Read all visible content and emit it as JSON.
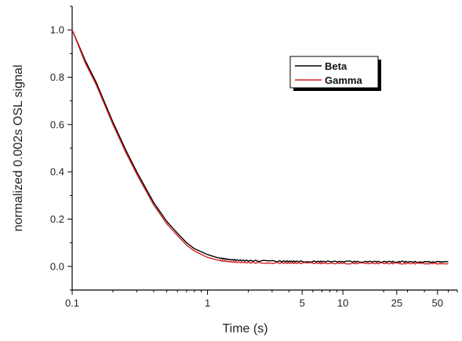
{
  "chart_data": {
    "type": "line",
    "xlabel": "Time (s)",
    "ylabel": "normalized 0.002s OSL signal",
    "xscale": "log",
    "xlim": [
      0.1,
      70
    ],
    "ylim": [
      -0.1,
      1.1
    ],
    "x_ticks": [
      {
        "value": 0.1,
        "label": "0.1"
      },
      {
        "value": 1,
        "label": "1"
      },
      {
        "value": 5,
        "label": "5"
      },
      {
        "value": 10,
        "label": "10"
      },
      {
        "value": 25,
        "label": "25"
      },
      {
        "value": 50,
        "label": "50"
      }
    ],
    "y_ticks": [
      {
        "value": 0.0,
        "label": "0.0"
      },
      {
        "value": 0.2,
        "label": "0.2"
      },
      {
        "value": 0.4,
        "label": "0.4"
      },
      {
        "value": 0.6,
        "label": "0.6"
      },
      {
        "value": 0.8,
        "label": "0.8"
      },
      {
        "value": 1.0,
        "label": "1.0"
      }
    ],
    "grid": false,
    "legend_position": "top-right",
    "series": [
      {
        "name": "Beta",
        "color": "#000000",
        "points": [
          [
            0.1,
            1.0
          ],
          [
            0.125,
            0.87
          ],
          [
            0.15,
            0.78
          ],
          [
            0.2,
            0.61
          ],
          [
            0.25,
            0.49
          ],
          [
            0.3,
            0.4
          ],
          [
            0.4,
            0.27
          ],
          [
            0.5,
            0.19
          ],
          [
            0.6,
            0.14
          ],
          [
            0.7,
            0.1
          ],
          [
            0.8,
            0.075
          ],
          [
            1.0,
            0.05
          ],
          [
            1.2,
            0.036
          ],
          [
            1.5,
            0.028
          ],
          [
            2.0,
            0.024
          ],
          [
            3.0,
            0.022
          ],
          [
            5.0,
            0.021
          ],
          [
            10.0,
            0.02
          ],
          [
            20.0,
            0.02
          ],
          [
            40.0,
            0.019
          ],
          [
            60.0,
            0.019
          ]
        ]
      },
      {
        "name": "Gamma",
        "color": "#d62020",
        "points": [
          [
            0.1,
            1.0
          ],
          [
            0.125,
            0.86
          ],
          [
            0.15,
            0.77
          ],
          [
            0.2,
            0.6
          ],
          [
            0.25,
            0.48
          ],
          [
            0.3,
            0.39
          ],
          [
            0.4,
            0.26
          ],
          [
            0.5,
            0.18
          ],
          [
            0.6,
            0.13
          ],
          [
            0.7,
            0.09
          ],
          [
            0.8,
            0.065
          ],
          [
            1.0,
            0.038
          ],
          [
            1.2,
            0.026
          ],
          [
            1.5,
            0.019
          ],
          [
            2.0,
            0.016
          ],
          [
            3.0,
            0.015
          ],
          [
            5.0,
            0.014
          ],
          [
            10.0,
            0.013
          ],
          [
            20.0,
            0.013
          ],
          [
            40.0,
            0.012
          ],
          [
            60.0,
            0.012
          ]
        ]
      }
    ]
  }
}
